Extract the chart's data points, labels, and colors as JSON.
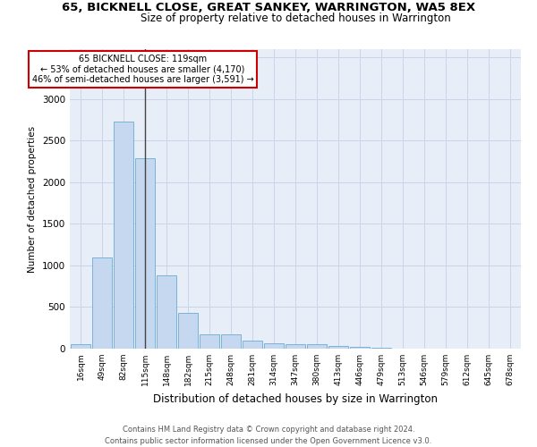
{
  "title": "65, BICKNELL CLOSE, GREAT SANKEY, WARRINGTON, WA5 8EX",
  "subtitle": "Size of property relative to detached houses in Warrington",
  "xlabel": "Distribution of detached houses by size in Warrington",
  "ylabel": "Number of detached properties",
  "categories": [
    "16sqm",
    "49sqm",
    "82sqm",
    "115sqm",
    "148sqm",
    "182sqm",
    "215sqm",
    "248sqm",
    "281sqm",
    "314sqm",
    "347sqm",
    "380sqm",
    "413sqm",
    "446sqm",
    "479sqm",
    "513sqm",
    "546sqm",
    "579sqm",
    "612sqm",
    "645sqm",
    "678sqm"
  ],
  "values": [
    50,
    1100,
    2730,
    2290,
    880,
    430,
    170,
    170,
    95,
    65,
    55,
    50,
    30,
    20,
    10,
    0,
    0,
    0,
    0,
    0,
    0
  ],
  "bar_color": "#c5d8f0",
  "bar_edge_color": "#6aaad4",
  "grid_color": "#c8d4e8",
  "background_color": "#e8eef8",
  "annotation_line0": "65 BICKNELL CLOSE: 119sqm",
  "annotation_line1": "← 53% of detached houses are smaller (4,170)",
  "annotation_line2": "46% of semi-detached houses are larger (3,591) →",
  "vline_color": "#444444",
  "annotation_box_edgecolor": "#cc0000",
  "footer1": "Contains HM Land Registry data © Crown copyright and database right 2024.",
  "footer2": "Contains public sector information licensed under the Open Government Licence v3.0.",
  "ylim": [
    0,
    3600
  ],
  "vline_x": 3.0
}
